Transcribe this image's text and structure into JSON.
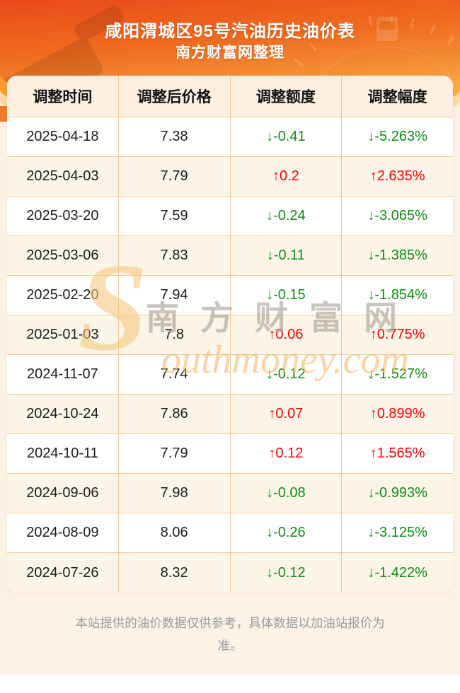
{
  "page": {
    "title": "咸阳渭城区95号汽油历史油价表",
    "subtitle": "南方财富网整理",
    "footer_note": "本站提供的油价数据仅供参考，具体数据以加油站报价为准。"
  },
  "icons": {
    "up_arrow": "↑",
    "down_arrow": "↓"
  },
  "colors": {
    "up_red": "#fb0400",
    "down_green": "#0b8e11",
    "header_orange_top": "#e94a1b",
    "header_orange_bottom": "#f8b259",
    "table_border": "#f2c893",
    "row_alt_bg": "#fbf5e8",
    "page_cream_bg": "#fbf1e4"
  },
  "watermark": {
    "cn": "南方财富网",
    "en_initial": "S",
    "en_rest": "outhmoney.com"
  },
  "table": {
    "headers": [
      "调整时间",
      "调整后价格",
      "调整额度",
      "调整幅度"
    ],
    "rows": [
      {
        "date": "2025-04-18",
        "price": "7.38",
        "amount": "-0.41",
        "percent": "-5.263%",
        "direction": "down"
      },
      {
        "date": "2025-04-03",
        "price": "7.79",
        "amount": "0.2",
        "percent": "2.635%",
        "direction": "up"
      },
      {
        "date": "2025-03-20",
        "price": "7.59",
        "amount": "-0.24",
        "percent": "-3.065%",
        "direction": "down"
      },
      {
        "date": "2025-03-06",
        "price": "7.83",
        "amount": "-0.11",
        "percent": "-1.385%",
        "direction": "down"
      },
      {
        "date": "2025-02-20",
        "price": "7.94",
        "amount": "-0.15",
        "percent": "-1.854%",
        "direction": "down"
      },
      {
        "date": "2025-01-03",
        "price": "7.8",
        "amount": "0.06",
        "percent": "0.775%",
        "direction": "up"
      },
      {
        "date": "2024-11-07",
        "price": "7.74",
        "amount": "-0.12",
        "percent": "-1.527%",
        "direction": "down"
      },
      {
        "date": "2024-10-24",
        "price": "7.86",
        "amount": "0.07",
        "percent": "0.899%",
        "direction": "up"
      },
      {
        "date": "2024-10-11",
        "price": "7.79",
        "amount": "0.12",
        "percent": "1.565%",
        "direction": "up"
      },
      {
        "date": "2024-09-06",
        "price": "7.98",
        "amount": "-0.08",
        "percent": "-0.993%",
        "direction": "down"
      },
      {
        "date": "2024-08-09",
        "price": "8.06",
        "amount": "-0.26",
        "percent": "-3.125%",
        "direction": "down"
      },
      {
        "date": "2024-07-26",
        "price": "8.32",
        "amount": "-0.12",
        "percent": "-1.422%",
        "direction": "down"
      }
    ]
  }
}
